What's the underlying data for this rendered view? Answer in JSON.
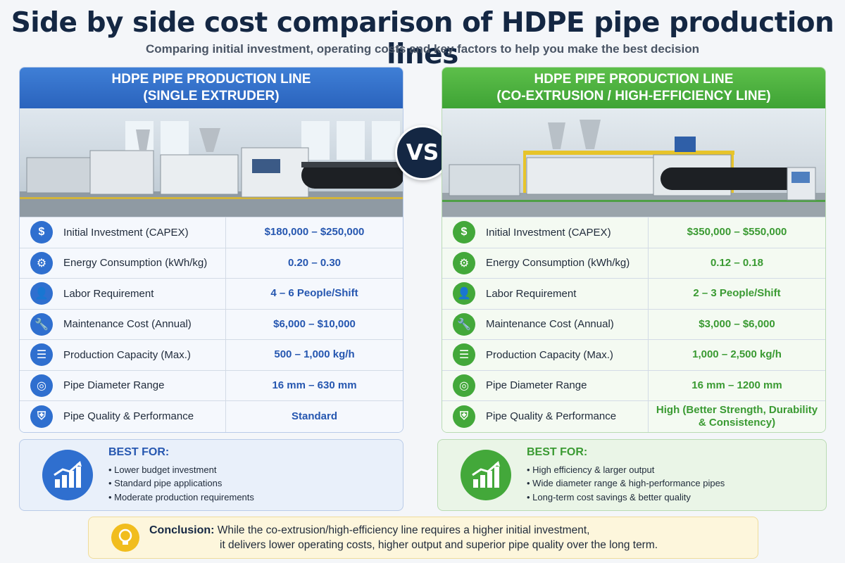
{
  "title": "Side by side cost comparison of HDPE pipe production lines",
  "subtitle": "Comparing initial investment, operating costs and key factors to help you make the best decision",
  "vs_label": "VS",
  "left": {
    "heading_line1": "HDPE PIPE PRODUCTION LINE",
    "heading_line2": "(SINGLE EXTRUDER)",
    "accent": "#2f6fcf",
    "rows": [
      {
        "icon": "dollar-icon",
        "label": "Initial Investment (CAPEX)",
        "value": "$180,000 – $250,000"
      },
      {
        "icon": "gear-icon",
        "label": "Energy Consumption (kWh/kg)",
        "value": "0.20 – 0.30"
      },
      {
        "icon": "person-icon",
        "label": "Labor Requirement",
        "value": "4 – 6 People/Shift"
      },
      {
        "icon": "wrench-icon",
        "label": "Maintenance Cost (Annual)",
        "value": "$6,000 – $10,000"
      },
      {
        "icon": "stack-icon",
        "label": "Production Capacity (Max.)",
        "value": "500 – 1,000 kg/h"
      },
      {
        "icon": "pipe-icon",
        "label": "Pipe Diameter Range",
        "value": "16 mm – 630 mm"
      },
      {
        "icon": "shield-icon",
        "label": "Pipe Quality & Performance",
        "value": "Standard"
      }
    ],
    "best_for_title": "BEST FOR:",
    "best_for": [
      "Lower budget investment",
      "Standard pipe applications",
      "Moderate production requirements"
    ]
  },
  "right": {
    "heading_line1": "HDPE PIPE PRODUCTION LINE",
    "heading_line2": "(CO-EXTRUSION / HIGH-EFFICIENCY LINE)",
    "accent": "#43a83a",
    "rows": [
      {
        "icon": "dollar-icon",
        "label": "Initial Investment (CAPEX)",
        "value": "$350,000 – $550,000"
      },
      {
        "icon": "gear-icon",
        "label": "Energy Consumption (kWh/kg)",
        "value": "0.12 – 0.18"
      },
      {
        "icon": "person-icon",
        "label": "Labor Requirement",
        "value": "2 – 3 People/Shift"
      },
      {
        "icon": "wrench-icon",
        "label": "Maintenance Cost (Annual)",
        "value": "$3,000 – $6,000"
      },
      {
        "icon": "stack-icon",
        "label": "Production Capacity (Max.)",
        "value": "1,000 – 2,500 kg/h"
      },
      {
        "icon": "pipe-icon",
        "label": "Pipe Diameter Range",
        "value": "16 mm – 1200 mm"
      },
      {
        "icon": "shield-icon",
        "label": "Pipe Quality & Performance",
        "value": "High (Better Strength, Durability & Consistency)"
      }
    ],
    "best_for_title": "BEST FOR:",
    "best_for": [
      "High efficiency & larger output",
      "Wide diameter range & high-performance pipes",
      "Long-term cost savings & better quality"
    ]
  },
  "conclusion": {
    "label": "Conclusion:",
    "line1": "While the co-extrusion/high-efficiency line requires a higher initial investment,",
    "line2": "it delivers lower operating costs, higher output and superior pipe quality over the long term."
  }
}
